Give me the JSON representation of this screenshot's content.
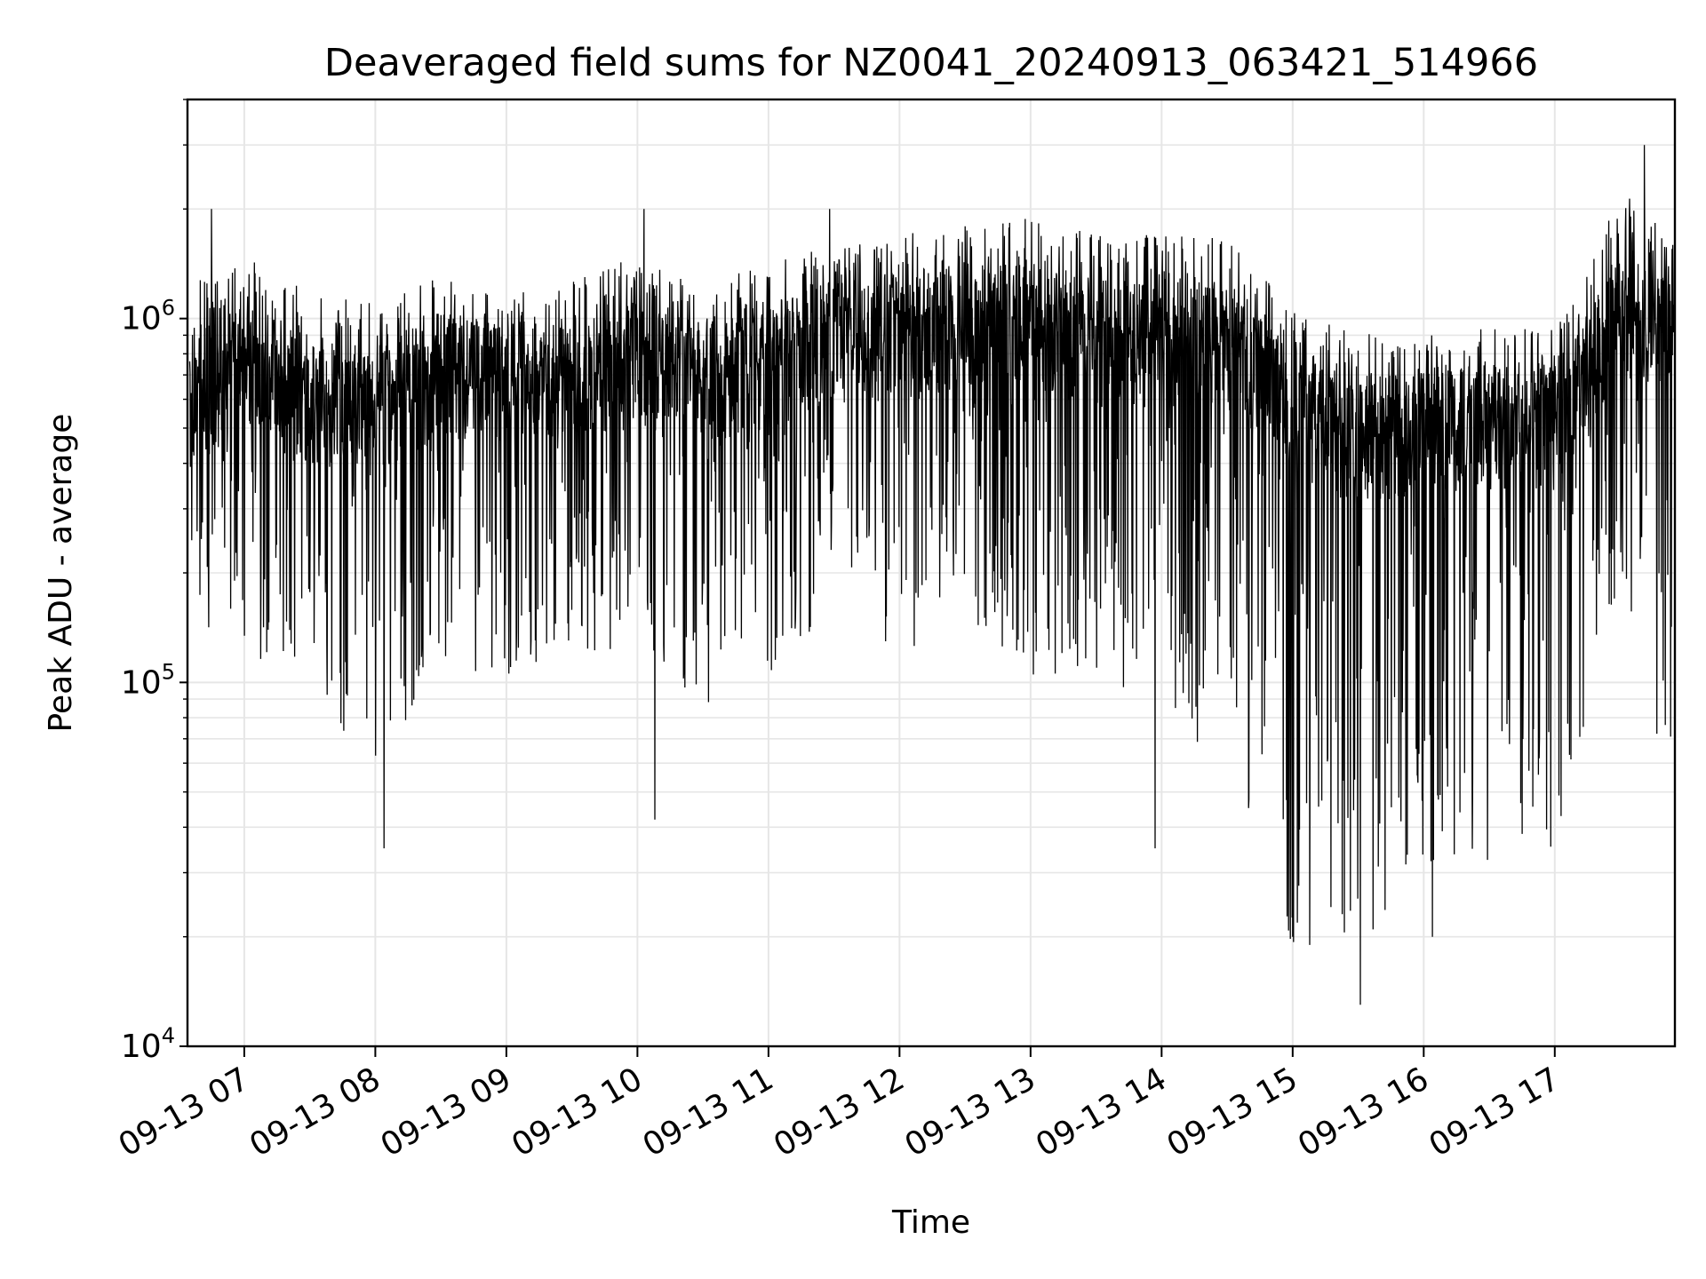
{
  "chart_data": {
    "type": "line",
    "title": "Deaveraged field sums for NZ0041_20240913_063421_514966",
    "xlabel": "Time",
    "ylabel": "Peak ADU - average",
    "x_tick_labels": [
      "09-13 07",
      "09-13 08",
      "09-13 09",
      "09-13 10",
      "09-13 11",
      "09-13 12",
      "09-13 13",
      "09-13 14",
      "09-13 15",
      "09-13 16",
      "09-13 17"
    ],
    "y_tick_labels": [
      {
        "base": "10",
        "exp": "4"
      },
      {
        "base": "10",
        "exp": "5"
      },
      {
        "base": "10",
        "exp": "6"
      }
    ],
    "xlim": [
      "2024-09-13 06:34",
      "2024-09-13 17:55"
    ],
    "ylim": [
      10000,
      4000000
    ],
    "yscale": "log",
    "grid": true,
    "line_color": "#000000",
    "grid_color": "#e6e6e6",
    "series_envelope": [
      {
        "time": "2024-09-13 06:35",
        "center": 600000,
        "spread_low": 0.6,
        "spread_high": 0.35
      },
      {
        "time": "2024-09-13 07:00",
        "center": 750000,
        "spread_low": 0.8,
        "spread_high": 0.3
      },
      {
        "time": "2024-09-13 07:30",
        "center": 600000,
        "spread_low": 0.9,
        "spread_high": 0.3
      },
      {
        "time": "2024-09-13 08:00",
        "center": 550000,
        "spread_low": 1.0,
        "spread_high": 0.3
      },
      {
        "time": "2024-09-13 08:30",
        "center": 700000,
        "spread_low": 0.8,
        "spread_high": 0.28
      },
      {
        "time": "2024-09-13 09:00",
        "center": 650000,
        "spread_low": 0.8,
        "spread_high": 0.25
      },
      {
        "time": "2024-09-13 09:30",
        "center": 680000,
        "spread_low": 0.75,
        "spread_high": 0.27
      },
      {
        "time": "2024-09-13 10:00",
        "center": 750000,
        "spread_low": 0.8,
        "spread_high": 0.3
      },
      {
        "time": "2024-09-13 10:30",
        "center": 650000,
        "spread_low": 0.9,
        "spread_high": 0.28
      },
      {
        "time": "2024-09-13 11:00",
        "center": 750000,
        "spread_low": 0.85,
        "spread_high": 0.28
      },
      {
        "time": "2024-09-13 11:30",
        "center": 850000,
        "spread_low": 0.9,
        "spread_high": 0.28
      },
      {
        "time": "2024-09-13 12:00",
        "center": 900000,
        "spread_low": 0.9,
        "spread_high": 0.28
      },
      {
        "time": "2024-09-13 12:30",
        "center": 950000,
        "spread_low": 0.8,
        "spread_high": 0.28
      },
      {
        "time": "2024-09-13 13:00",
        "center": 950000,
        "spread_low": 0.95,
        "spread_high": 0.3
      },
      {
        "time": "2024-09-13 13:30",
        "center": 850000,
        "spread_low": 1.1,
        "spread_high": 0.3
      },
      {
        "time": "2024-09-13 14:00",
        "center": 850000,
        "spread_low": 1.1,
        "spread_high": 0.3
      },
      {
        "time": "2024-09-13 14:30",
        "center": 850000,
        "spread_low": 1.1,
        "spread_high": 0.3
      },
      {
        "time": "2024-09-13 15:00",
        "center": 550000,
        "spread_low": 1.5,
        "spread_high": 0.3
      },
      {
        "time": "2024-09-13 15:30",
        "center": 450000,
        "spread_low": 1.4,
        "spread_high": 0.3
      },
      {
        "time": "2024-09-13 16:00",
        "center": 500000,
        "spread_low": 1.2,
        "spread_high": 0.28
      },
      {
        "time": "2024-09-13 16:30",
        "center": 500000,
        "spread_low": 1.2,
        "spread_high": 0.28
      },
      {
        "time": "2024-09-13 17:00",
        "center": 500000,
        "spread_low": 1.2,
        "spread_high": 0.28
      },
      {
        "time": "2024-09-13 17:30",
        "center": 1000000,
        "spread_low": 0.7,
        "spread_high": 0.35
      },
      {
        "time": "2024-09-13 17:50",
        "center": 900000,
        "spread_low": 1.2,
        "spread_high": 0.3
      }
    ],
    "notable_points": [
      {
        "time": "2024-09-13 17:41",
        "value": 3000000,
        "note": "maximum"
      },
      {
        "time": "2024-09-13 15:31",
        "value": 13000,
        "note": "minimum"
      },
      {
        "time": "2024-09-13 08:04",
        "value": 35000
      },
      {
        "time": "2024-09-13 10:08",
        "value": 42000
      },
      {
        "time": "2024-09-13 13:57",
        "value": 35000
      },
      {
        "time": "2024-09-13 15:00",
        "value": 20000
      },
      {
        "time": "2024-09-13 16:04",
        "value": 20000
      },
      {
        "time": "2024-09-13 06:45",
        "value": 2000000
      },
      {
        "time": "2024-09-13 10:03",
        "value": 2000000
      },
      {
        "time": "2024-09-13 11:28",
        "value": 2000000
      }
    ]
  }
}
